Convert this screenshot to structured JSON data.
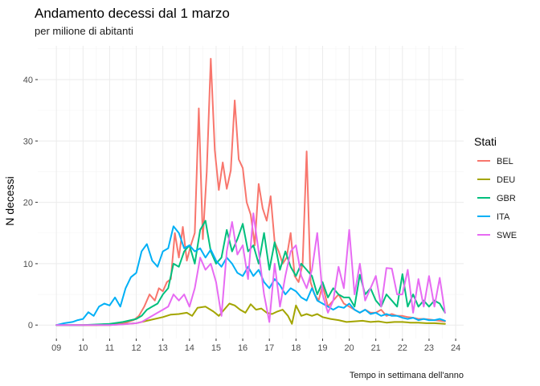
{
  "chart_data": {
    "type": "line",
    "title": "Andamento decessi dal 1 marzo",
    "subtitle": "per milione di abitanti",
    "xlabel": "Tempo in settimana dell'anno",
    "ylabel": "N decessi",
    "legend_title": "Stati",
    "legend_position": "right",
    "grid": true,
    "xlim": [
      8.3,
      24.3
    ],
    "ylim": [
      -2.2,
      45.5
    ],
    "x_ticks": [
      "09",
      "10",
      "11",
      "12",
      "13",
      "14",
      "15",
      "16",
      "17",
      "18",
      "19",
      "20",
      "21",
      "22",
      "23",
      "24"
    ],
    "y_ticks": [
      0,
      10,
      20,
      30,
      40
    ],
    "series": [
      {
        "name": "BEL",
        "color": "#F8766D",
        "x": [
          9,
          9.5,
          10,
          10.5,
          11,
          11.3,
          11.6,
          11.9,
          12.1,
          12.3,
          12.5,
          12.7,
          12.85,
          13,
          13.15,
          13.3,
          13.45,
          13.6,
          13.75,
          13.9,
          14.05,
          14.2,
          14.35,
          14.5,
          14.65,
          14.8,
          14.95,
          15.1,
          15.25,
          15.4,
          15.55,
          15.7,
          15.85,
          16,
          16.15,
          16.3,
          16.45,
          16.6,
          16.75,
          16.9,
          17.05,
          17.2,
          17.35,
          17.5,
          17.65,
          17.8,
          17.95,
          18.1,
          18.25,
          18.4,
          18.55,
          18.7,
          18.85,
          19,
          19.2,
          19.4,
          19.6,
          19.8,
          20,
          20.2,
          20.4,
          20.6,
          20.8,
          21,
          21.2,
          21.4,
          21.6,
          21.8,
          22,
          22.2,
          22.4,
          22.6,
          22.8,
          23,
          23.2,
          23.4,
          23.6
        ],
        "y": [
          0,
          0,
          0,
          0,
          0.1,
          0.2,
          0.4,
          0.8,
          1.5,
          3,
          5,
          4,
          6,
          5.5,
          7,
          7.5,
          15,
          11,
          16,
          10.5,
          13,
          15,
          35.3,
          14,
          25,
          43.4,
          28.5,
          22,
          26.5,
          22.2,
          25.2,
          36.6,
          27,
          25.6,
          20,
          18,
          13,
          23,
          19,
          17,
          21,
          13.5,
          12,
          10,
          11,
          15,
          8,
          7,
          10,
          28.3,
          7,
          5,
          4,
          6.5,
          3,
          4,
          5,
          3.5,
          3,
          2.5,
          2,
          2.5,
          2,
          2,
          2.5,
          1.5,
          1.8,
          1.5,
          1.5,
          1.3,
          1.2,
          1,
          1,
          0.9,
          0.8,
          0.7,
          0.6
        ]
      },
      {
        "name": "DEU",
        "color": "#A3A500",
        "x": [
          9,
          10,
          11,
          12,
          12.5,
          13,
          13.3,
          13.6,
          13.9,
          14.1,
          14.3,
          14.6,
          14.9,
          15.1,
          15.3,
          15.5,
          15.7,
          15.9,
          16.1,
          16.3,
          16.5,
          16.7,
          16.9,
          17.1,
          17.3,
          17.5,
          17.7,
          17.85,
          18,
          18.2,
          18.4,
          18.6,
          18.8,
          19,
          19.3,
          19.6,
          19.9,
          20.2,
          20.5,
          20.8,
          21.1,
          21.4,
          21.7,
          22,
          22.3,
          22.6,
          22.9,
          23.2,
          23.6
        ],
        "y": [
          0,
          0,
          0,
          0.3,
          0.8,
          1.3,
          1.7,
          1.8,
          2,
          1.5,
          2.8,
          3,
          2.2,
          1.5,
          2.5,
          3.5,
          3.2,
          2.5,
          2,
          3.4,
          2.5,
          2.7,
          2,
          1.8,
          2.2,
          2.5,
          1.5,
          0.2,
          3.2,
          1.5,
          1.8,
          1.5,
          1.8,
          1.3,
          1,
          0.8,
          0.5,
          0.6,
          0.7,
          0.5,
          0.6,
          0.4,
          0.5,
          0.5,
          0.4,
          0.4,
          0.3,
          0.3,
          0.2
        ]
      },
      {
        "name": "GBR",
        "color": "#00BF7D",
        "x": [
          9,
          10,
          11,
          11.5,
          12,
          12.2,
          12.4,
          12.6,
          12.8,
          13,
          13.2,
          13.4,
          13.6,
          13.8,
          14,
          14.2,
          14.4,
          14.6,
          14.8,
          15,
          15.2,
          15.4,
          15.6,
          15.8,
          16,
          16.2,
          16.4,
          16.6,
          16.8,
          17,
          17.2,
          17.4,
          17.6,
          17.8,
          18,
          18.2,
          18.4,
          18.6,
          18.8,
          19,
          19.2,
          19.4,
          19.6,
          19.8,
          20,
          20.2,
          20.4,
          20.6,
          20.8,
          21,
          21.2,
          21.4,
          21.6,
          21.8,
          22,
          22.2,
          22.4,
          22.6,
          22.8,
          23,
          23.2,
          23.4,
          23.6
        ],
        "y": [
          0,
          0,
          0.2,
          0.5,
          1,
          1.5,
          2.5,
          3,
          3.5,
          5,
          6,
          10,
          9.5,
          12,
          13,
          10,
          15.5,
          17,
          12,
          10,
          11,
          15.5,
          12,
          14,
          16.5,
          12,
          13,
          10,
          15,
          9,
          13.5,
          9,
          12,
          9.5,
          8,
          10,
          9,
          8,
          5,
          7,
          4.5,
          6,
          5,
          4.5,
          4.5,
          3,
          8.2,
          5,
          6,
          4,
          3,
          5,
          4,
          3,
          8.3,
          3,
          5,
          3,
          4,
          3,
          4,
          3.5,
          2
        ]
      },
      {
        "name": "ITA",
        "color": "#00B0F6",
        "x": [
          9,
          9.3,
          9.6,
          9.8,
          10,
          10.2,
          10.4,
          10.6,
          10.8,
          11,
          11.2,
          11.4,
          11.6,
          11.8,
          12,
          12.2,
          12.4,
          12.6,
          12.8,
          13,
          13.2,
          13.4,
          13.6,
          13.8,
          14,
          14.2,
          14.4,
          14.6,
          14.8,
          15,
          15.2,
          15.4,
          15.6,
          15.8,
          16,
          16.2,
          16.4,
          16.6,
          16.8,
          17,
          17.2,
          17.4,
          17.6,
          17.8,
          18,
          18.2,
          18.4,
          18.6,
          18.8,
          19,
          19.2,
          19.4,
          19.6,
          19.8,
          20,
          20.2,
          20.4,
          20.6,
          20.8,
          21,
          21.2,
          21.4,
          21.6,
          21.8,
          22,
          22.2,
          22.4,
          22.6,
          22.8,
          23,
          23.2,
          23.4,
          23.6
        ],
        "y": [
          0,
          0.3,
          0.5,
          0.8,
          1,
          2.1,
          1.5,
          3,
          3.5,
          3.2,
          4.5,
          3,
          6,
          7.8,
          8.5,
          12,
          13.2,
          10.5,
          9.5,
          12,
          12.5,
          16.1,
          15,
          12.5,
          13,
          12,
          12.5,
          11,
          12.3,
          10.5,
          9.5,
          11,
          10,
          8.5,
          8,
          9.5,
          8,
          9,
          7,
          6,
          7.5,
          6.5,
          5,
          6,
          5.5,
          4.5,
          4,
          6,
          4,
          3.5,
          3,
          2.5,
          3,
          2.8,
          3.5,
          2.5,
          2,
          2.5,
          1.8,
          2,
          1.5,
          1.8,
          1.5,
          1.5,
          1.2,
          1,
          1.2,
          0.8,
          1,
          0.8,
          0.8,
          1,
          0.7
        ]
      },
      {
        "name": "SWE",
        "color": "#E76BF3",
        "x": [
          9,
          10,
          11,
          11.5,
          12,
          12.2,
          12.4,
          12.6,
          12.8,
          13,
          13.2,
          13.4,
          13.6,
          13.8,
          14,
          14.2,
          14.4,
          14.6,
          14.8,
          15,
          15.2,
          15.4,
          15.6,
          15.8,
          16,
          16.2,
          16.4,
          16.6,
          16.8,
          17,
          17.2,
          17.4,
          17.6,
          17.8,
          18,
          18.2,
          18.4,
          18.6,
          18.8,
          19,
          19.2,
          19.4,
          19.6,
          19.8,
          20,
          20.2,
          20.4,
          20.6,
          20.8,
          21,
          21.2,
          21.4,
          21.6,
          21.8,
          22,
          22.2,
          22.4,
          22.6,
          22.8,
          23,
          23.2,
          23.4,
          23.6
        ],
        "y": [
          0,
          0,
          0,
          0.1,
          0.3,
          0.5,
          1,
          1.5,
          2,
          2.5,
          3,
          5,
          4,
          5,
          3,
          6,
          11,
          9,
          10,
          7,
          1.5,
          12,
          16.8,
          11.5,
          13,
          7.5,
          18.2,
          12,
          5,
          0.5,
          10,
          3,
          8,
          12,
          13,
          8,
          6,
          9,
          15,
          5,
          2,
          4,
          9.5,
          6,
          15.5,
          5,
          10,
          4,
          6,
          8,
          3,
          9.3,
          9.2,
          5,
          5,
          9,
          2,
          7.5,
          3,
          8,
          3,
          7.7,
          2
        ]
      }
    ]
  }
}
